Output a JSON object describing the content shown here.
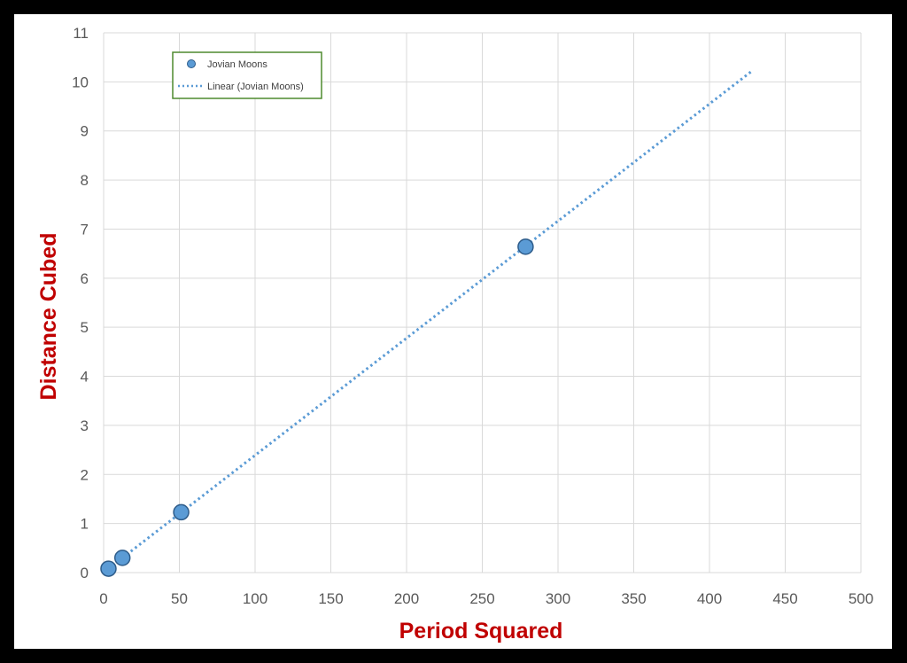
{
  "chart_data": {
    "type": "scatter",
    "xlabel": "Period Squared",
    "ylabel": "Distance Cubed",
    "xlim": [
      0,
      500
    ],
    "ylim": [
      0,
      11
    ],
    "x_ticks": [
      "0",
      "50",
      "100",
      "150",
      "200",
      "250",
      "300",
      "350",
      "400",
      "450",
      "500"
    ],
    "y_ticks": [
      "0",
      "1",
      "2",
      "3",
      "4",
      "5",
      "6",
      "7",
      "8",
      "9",
      "10",
      "11"
    ],
    "grid": true,
    "legend": {
      "placement": "top-left"
    },
    "series": [
      {
        "name": "Jovian Moons",
        "marker_color": "#5b9bd5",
        "marker_edge": "#2e5c8a",
        "points": [
          {
            "x": 3.2,
            "y": 0.08
          },
          {
            "x": 12.4,
            "y": 0.3
          },
          {
            "x": 51.2,
            "y": 1.23
          },
          {
            "x": 278.6,
            "y": 6.64
          }
        ]
      }
    ],
    "trendline": {
      "name": "Linear (Jovian Moons)",
      "style": "dotted",
      "color": "#5b9bd5",
      "x_start": 12.4,
      "y_start": 0.3,
      "x_end": 428,
      "y_end": 10.22
    }
  }
}
